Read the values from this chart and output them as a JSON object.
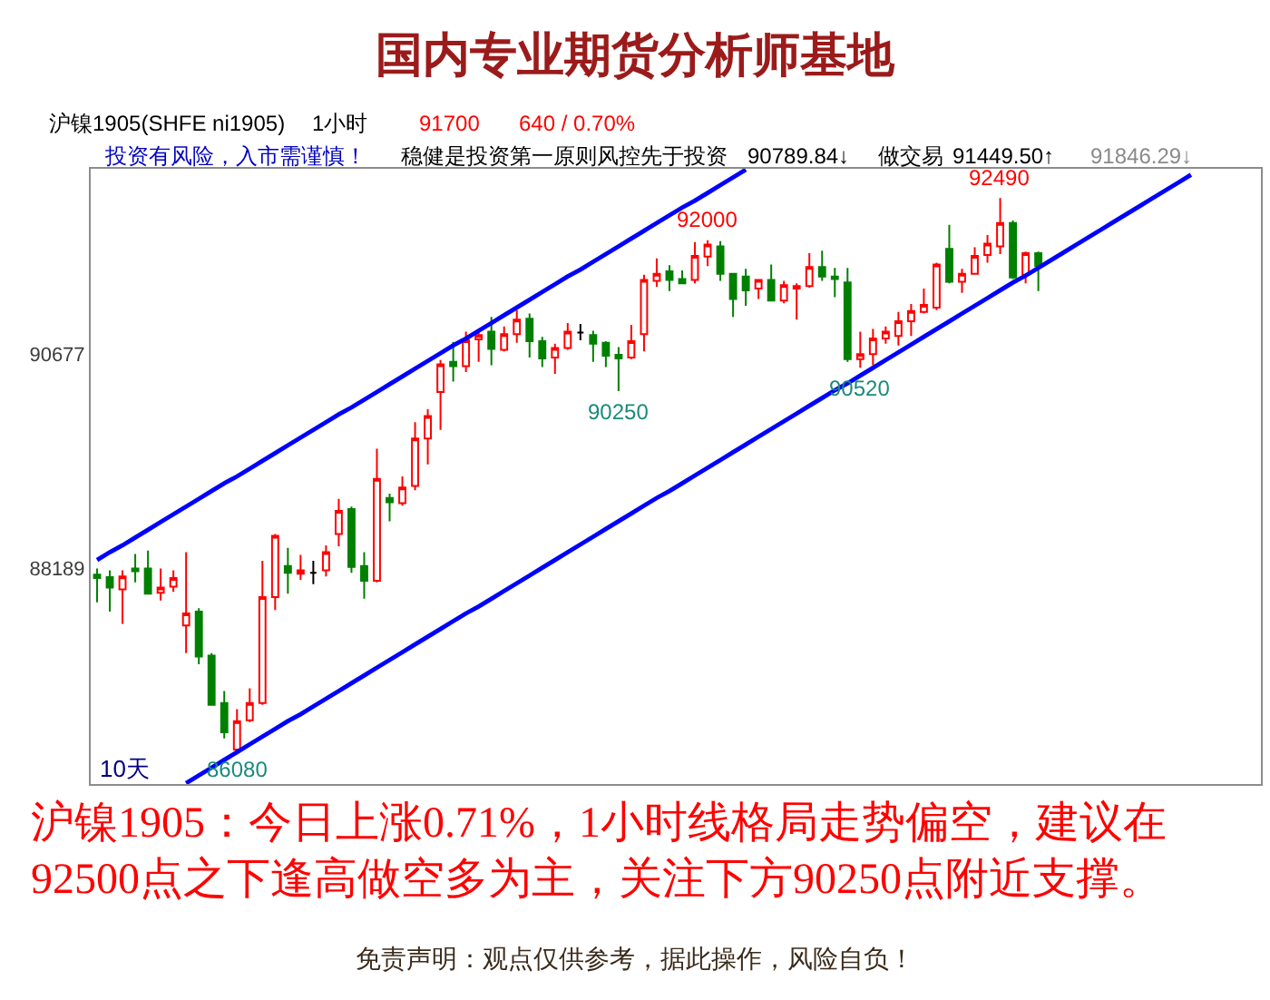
{
  "chart_data": {
    "type": "candlestick",
    "title": "国内专业期货分析师基地",
    "categories": [
      null,
      null,
      null,
      null,
      null,
      null,
      null,
      null,
      null,
      null,
      null,
      null,
      null,
      null,
      null,
      null,
      null,
      null,
      null,
      null,
      null,
      null,
      null,
      null,
      null,
      null,
      null,
      null,
      null,
      null,
      null,
      null,
      null,
      null,
      null,
      null,
      null,
      null,
      null,
      null,
      null,
      null,
      null,
      null,
      null,
      null,
      null,
      null,
      null,
      null,
      null,
      null,
      null,
      null,
      null,
      null,
      null,
      null,
      null,
      null,
      null,
      null,
      null,
      null,
      null,
      null,
      null,
      null,
      null,
      null,
      null,
      null,
      null,
      null,
      null,
      null,
      null,
      null,
      null,
      null,
      null,
      null,
      null,
      null,
      null,
      null,
      null,
      null,
      null,
      null,
      null,
      null
    ],
    "ohlc": [
      [
        88120,
        88190,
        87800,
        88080
      ],
      [
        88090,
        88170,
        87690,
        87970
      ],
      [
        87950,
        88170,
        87550,
        88100
      ],
      [
        88190,
        88360,
        88030,
        88160
      ],
      [
        88190,
        88400,
        87890,
        87900
      ],
      [
        87910,
        88190,
        87820,
        87970
      ],
      [
        87980,
        88170,
        87920,
        88080
      ],
      [
        87530,
        88380,
        87210,
        87670
      ],
      [
        87690,
        87730,
        87080,
        87170
      ],
      [
        87180,
        87210,
        86600,
        86610
      ],
      [
        86630,
        86770,
        86220,
        86290
      ],
      [
        86090,
        86560,
        86080,
        86420
      ],
      [
        86430,
        86800,
        86410,
        86630
      ],
      [
        86630,
        88280,
        86610,
        87860
      ],
      [
        87860,
        88590,
        87710,
        88570
      ],
      [
        88220,
        88430,
        87900,
        88140
      ],
      [
        88130,
        88350,
        88060,
        88170
      ],
      [
        88140,
        88280,
        88010,
        88140
      ],
      [
        88170,
        88460,
        88100,
        88380
      ],
      [
        88590,
        89000,
        88450,
        88860
      ],
      [
        88880,
        88910,
        88140,
        88210
      ],
      [
        88220,
        88380,
        87840,
        88050
      ],
      [
        88050,
        89580,
        88030,
        89230
      ],
      [
        89010,
        89060,
        88740,
        88960
      ],
      [
        88950,
        89260,
        88920,
        89130
      ],
      [
        89150,
        89890,
        89100,
        89700
      ],
      [
        89700,
        90040,
        89400,
        89960
      ],
      [
        90240,
        90610,
        89800,
        90560
      ],
      [
        90590,
        90820,
        90360,
        90540
      ],
      [
        90540,
        90940,
        90470,
        90840
      ],
      [
        90850,
        90970,
        90590,
        90900
      ],
      [
        90940,
        91110,
        90550,
        90740
      ],
      [
        90730,
        91000,
        90710,
        90910
      ],
      [
        90910,
        91190,
        90810,
        91080
      ],
      [
        91090,
        91150,
        90640,
        90830
      ],
      [
        90830,
        90880,
        90530,
        90630
      ],
      [
        90640,
        90800,
        90450,
        90750
      ],
      [
        90750,
        91040,
        90730,
        90940
      ],
      [
        90930,
        91030,
        90840,
        90930
      ],
      [
        90900,
        90950,
        90590,
        90800
      ],
      [
        90810,
        90830,
        90530,
        90660
      ],
      [
        90670,
        90760,
        90250,
        90630
      ],
      [
        90640,
        91020,
        90620,
        90830
      ],
      [
        90910,
        91600,
        90710,
        91540
      ],
      [
        91530,
        91790,
        91460,
        91610
      ],
      [
        91640,
        91710,
        91410,
        91540
      ],
      [
        91550,
        91650,
        91490,
        91500
      ],
      [
        91540,
        91980,
        91500,
        91820
      ],
      [
        91810,
        92000,
        91700,
        91950
      ],
      [
        91930,
        91990,
        91530,
        91610
      ],
      [
        91610,
        91620,
        91110,
        91320
      ],
      [
        91580,
        91670,
        91240,
        91420
      ],
      [
        91440,
        91550,
        91320,
        91540
      ],
      [
        91540,
        91720,
        91290,
        91300
      ],
      [
        91300,
        91530,
        91270,
        91480
      ],
      [
        91440,
        91500,
        91080,
        91470
      ],
      [
        91470,
        91850,
        91450,
        91690
      ],
      [
        91690,
        91880,
        91530,
        91580
      ],
      [
        91580,
        91680,
        91340,
        91550
      ],
      [
        91510,
        91680,
        90590,
        90620
      ],
      [
        90620,
        90940,
        90520,
        90680
      ],
      [
        90680,
        90970,
        90550,
        90860
      ],
      [
        90860,
        91000,
        90800,
        90940
      ],
      [
        90890,
        91170,
        90780,
        91060
      ],
      [
        91060,
        91260,
        90890,
        91180
      ],
      [
        91170,
        91440,
        91150,
        91250
      ],
      [
        91220,
        91740,
        91190,
        91720
      ],
      [
        91900,
        92180,
        91500,
        91520
      ],
      [
        91520,
        91670,
        91390,
        91610
      ],
      [
        91610,
        91920,
        91600,
        91820
      ],
      [
        91830,
        92060,
        91740,
        91960
      ],
      [
        91930,
        92490,
        91840,
        92200
      ],
      [
        92200,
        92230,
        91550,
        91570
      ],
      [
        91600,
        91870,
        91500,
        91850
      ],
      [
        91850,
        91870,
        91410,
        91700
      ],
      null,
      null,
      null,
      null,
      null,
      null,
      null,
      null,
      null,
      null,
      null,
      null,
      null,
      null,
      null,
      null,
      null
    ],
    "colors": [
      "#008000",
      "#008000",
      "#ff0000",
      "#008000",
      "#008000",
      "#ff0000",
      "#ff0000",
      "#ff0000",
      "#008000",
      "#008000",
      "#008000",
      "#ff0000",
      "#ff0000",
      "#ff0000",
      "#ff0000",
      "#008000",
      "#ff0000",
      "#000000",
      "#ff0000",
      "#ff0000",
      "#008000",
      "#008000",
      "#ff0000",
      "#008000",
      "#ff0000",
      "#ff0000",
      "#ff0000",
      "#ff0000",
      "#008000",
      "#ff0000",
      "#ff0000",
      "#008000",
      "#ff0000",
      "#ff0000",
      "#008000",
      "#008000",
      "#ff0000",
      "#ff0000",
      "#000000",
      "#008000",
      "#008000",
      "#008000",
      "#ff0000",
      "#ff0000",
      "#ff0000",
      "#008000",
      "#008000",
      "#ff0000",
      "#ff0000",
      "#008000",
      "#008000",
      "#008000",
      "#ff0000",
      "#008000",
      "#ff0000",
      "#ff0000",
      "#ff0000",
      "#008000",
      "#008000",
      "#008000",
      "#ff0000",
      "#ff0000",
      "#ff0000",
      "#ff0000",
      "#ff0000",
      "#ff0000",
      "#ff0000",
      "#008000",
      "#ff0000",
      "#ff0000",
      "#ff0000",
      "#ff0000",
      "#008000",
      "#ff0000",
      "#008000",
      null,
      null,
      null,
      null,
      null,
      null,
      null,
      null,
      null,
      null,
      null,
      null,
      null,
      null,
      null,
      null,
      null
    ],
    "series": [
      {
        "type": "line",
        "color": "#0000ff",
        "values": [
          88290,
          88380,
          88460,
          88550,
          88640,
          88730,
          88820,
          88910,
          89000,
          89090,
          89180,
          89260,
          89350,
          89440,
          89530,
          89620,
          89710,
          89800,
          89890,
          89980,
          90060,
          90150,
          90240,
          90330,
          90420,
          90510,
          90600,
          90690,
          90780,
          90860,
          90950,
          91040,
          91130,
          91220,
          91310,
          91400,
          91490,
          91580,
          91660,
          91750,
          91840,
          91930,
          92020,
          92110,
          92200,
          92290,
          92380,
          92460,
          92550,
          92640,
          92730,
          92820,
          null,
          null,
          null,
          null,
          null,
          null,
          null,
          null,
          null,
          null,
          null,
          null,
          null,
          null,
          null,
          null,
          null,
          null,
          null,
          null,
          null,
          null,
          null,
          null,
          null,
          null,
          null,
          null,
          null,
          null,
          null,
          null,
          null,
          null,
          null,
          null,
          null,
          null,
          null,
          null
        ]
      },
      {
        "type": "line",
        "color": "#0000ff",
        "values": [
          null,
          null,
          null,
          null,
          null,
          null,
          null,
          85700,
          85790,
          85880,
          85970,
          86060,
          86150,
          86240,
          86330,
          86420,
          86500,
          86590,
          86680,
          86770,
          86860,
          86950,
          87040,
          87130,
          87220,
          87310,
          87400,
          87490,
          87580,
          87670,
          87750,
          87840,
          87930,
          88020,
          88110,
          88200,
          88290,
          88380,
          88470,
          88560,
          88650,
          88740,
          88830,
          88920,
          89010,
          89090,
          89180,
          89270,
          89360,
          89450,
          89540,
          89630,
          89720,
          89810,
          89900,
          89990,
          90080,
          90170,
          90260,
          90340,
          90430,
          90520,
          90610,
          90700,
          90790,
          90880,
          90970,
          91060,
          91150,
          91240,
          91330,
          91420,
          91510,
          91590,
          91680,
          91770,
          91860,
          91950,
          92040,
          92130,
          92220,
          92310,
          92400,
          92490,
          92580,
          92670,
          92760,
          null,
          null,
          null,
          null,
          null
        ]
      }
    ],
    "ylim": [
      85690,
      92830
    ],
    "yticks": [
      88189,
      90677
    ],
    "tick_labels": "y",
    "annotations": [
      "沪镍1905(SHFE ni1905)",
      "1小时",
      "91700",
      "640 / 0.70%",
      "投资有风险，入市需谨慎！",
      "稳健是投资第一原则风控先于投资",
      "90789.84↓",
      "做交易",
      "91449.50↑",
      "91846.29↓",
      "10天",
      "沪镍1905：今日上涨0.71%，1小时线格局走势偏空，建议在92500点之下逢高做空多为主，关注下方90250点附近支撑。",
      "免责声明：观点仅供参考，据此操作，风险自负！",
      {
        "text": "92490",
        "y": 92490
      },
      {
        "text": "92000",
        "y": 92000
      },
      {
        "text": "90250",
        "y": 90250
      },
      {
        "text": "90520",
        "y": 90520
      },
      {
        "text": "86080",
        "y": 86080
      }
    ]
  }
}
